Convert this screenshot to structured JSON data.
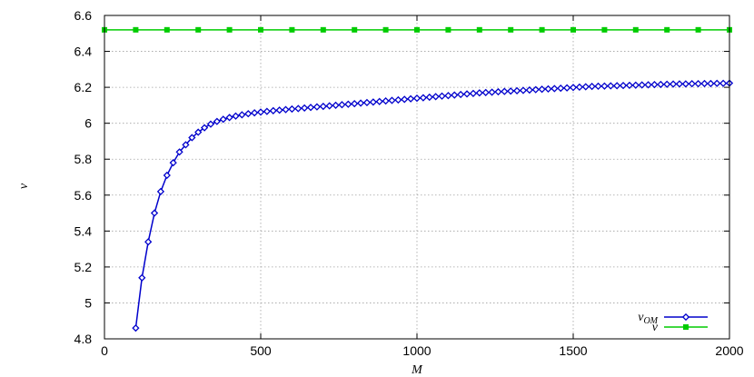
{
  "chart_data": {
    "type": "line",
    "xlabel": "M",
    "ylabel": "v",
    "xlim": [
      0,
      2000
    ],
    "ylim": [
      4.8,
      6.6
    ],
    "x_ticks": [
      0,
      500,
      1000,
      1500,
      2000
    ],
    "y_ticks": [
      4.8,
      5,
      5.2,
      5.4,
      5.6,
      5.8,
      6,
      6.2,
      6.4,
      6.6
    ],
    "x_tick_labels": [
      "0",
      "500",
      "1000",
      "1500",
      "2000"
    ],
    "y_tick_labels": [
      "4.8",
      "5",
      "5.2",
      "5.4",
      "5.6",
      "5.8",
      "6",
      "6.2",
      "6.4",
      "6.6"
    ],
    "grid": true,
    "legend_position": "bottom-right",
    "legend": {
      "series_0": {
        "main": "v",
        "sub": "OM"
      },
      "series_1": {
        "main": "v",
        "sub": ""
      }
    },
    "series": [
      {
        "color": "#0000cc",
        "marker": "diamond",
        "x": [
          100,
          120,
          140,
          160,
          180,
          200,
          220,
          240,
          260,
          280,
          300,
          320,
          340,
          360,
          380,
          400,
          420,
          440,
          460,
          480,
          500,
          520,
          540,
          560,
          580,
          600,
          620,
          640,
          660,
          680,
          700,
          720,
          740,
          760,
          780,
          800,
          820,
          840,
          860,
          880,
          900,
          920,
          940,
          960,
          980,
          1000,
          1020,
          1040,
          1060,
          1080,
          1100,
          1120,
          1140,
          1160,
          1180,
          1200,
          1220,
          1240,
          1260,
          1280,
          1300,
          1320,
          1340,
          1360,
          1380,
          1400,
          1420,
          1440,
          1460,
          1480,
          1500,
          1520,
          1540,
          1560,
          1580,
          1600,
          1620,
          1640,
          1660,
          1680,
          1700,
          1720,
          1740,
          1760,
          1780,
          1800,
          1820,
          1840,
          1860,
          1880,
          1900,
          1920,
          1940,
          1960,
          1980,
          2000
        ],
        "y": [
          4.86,
          5.14,
          5.34,
          5.5,
          5.62,
          5.71,
          5.78,
          5.84,
          5.88,
          5.92,
          5.95,
          5.975,
          5.995,
          6.01,
          6.022,
          6.032,
          6.04,
          6.047,
          6.053,
          6.058,
          6.062,
          6.066,
          6.07,
          6.073,
          6.076,
          6.079,
          6.082,
          6.085,
          6.088,
          6.091,
          6.094,
          6.097,
          6.1,
          6.103,
          6.106,
          6.109,
          6.112,
          6.115,
          6.118,
          6.121,
          6.124,
          6.127,
          6.13,
          6.133,
          6.136,
          6.139,
          6.142,
          6.145,
          6.148,
          6.151,
          6.154,
          6.157,
          6.16,
          6.163,
          6.166,
          6.169,
          6.171,
          6.173,
          6.175,
          6.177,
          6.179,
          6.181,
          6.183,
          6.185,
          6.187,
          6.189,
          6.191,
          6.193,
          6.195,
          6.197,
          6.199,
          6.201,
          6.203,
          6.205,
          6.206,
          6.207,
          6.208,
          6.209,
          6.21,
          6.211,
          6.212,
          6.213,
          6.214,
          6.215,
          6.216,
          6.217,
          6.218,
          6.219,
          6.219,
          6.22,
          6.22,
          6.221,
          6.221,
          6.222,
          6.222,
          6.223
        ]
      },
      {
        "color": "#00cc00",
        "marker": "square",
        "x": [
          0,
          100,
          200,
          300,
          400,
          500,
          600,
          700,
          800,
          900,
          1000,
          1100,
          1200,
          1300,
          1400,
          1500,
          1600,
          1700,
          1800,
          1900,
          2000
        ],
        "y": [
          6.52,
          6.52,
          6.52,
          6.52,
          6.52,
          6.52,
          6.52,
          6.52,
          6.52,
          6.52,
          6.52,
          6.52,
          6.52,
          6.52,
          6.52,
          6.52,
          6.52,
          6.52,
          6.52,
          6.52,
          6.52
        ]
      }
    ]
  }
}
